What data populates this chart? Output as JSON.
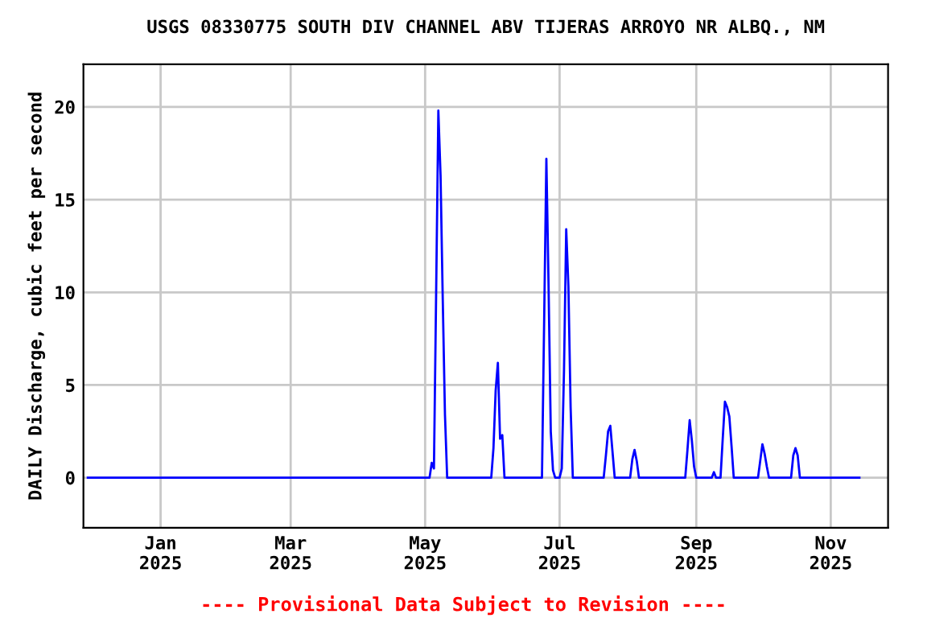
{
  "chart_data": {
    "type": "line",
    "title": "USGS 08330775 SOUTH DIV CHANNEL ABV TIJERAS ARROYO NR ALBQ., NM",
    "ylabel": "DAILY Discharge, cubic feet per second",
    "annotations": [
      "---- Provisional Data Subject to Revision ----"
    ],
    "series": [
      {
        "color": "#0000ff",
        "x": [
          "2024-11-29",
          "2025-05-03",
          "2025-05-04",
          "2025-05-05",
          "2025-05-06",
          "2025-05-07",
          "2025-05-08",
          "2025-05-09",
          "2025-05-10",
          "2025-05-11",
          "2025-05-31",
          "2025-06-01",
          "2025-06-02",
          "2025-06-03",
          "2025-06-04",
          "2025-06-05",
          "2025-06-06",
          "2025-06-23",
          "2025-06-24",
          "2025-06-25",
          "2025-06-26",
          "2025-06-27",
          "2025-06-28",
          "2025-06-29",
          "2025-07-01",
          "2025-07-02",
          "2025-07-03",
          "2025-07-04",
          "2025-07-05",
          "2025-07-06",
          "2025-07-07",
          "2025-07-21",
          "2025-07-22",
          "2025-07-23",
          "2025-07-24",
          "2025-07-25",
          "2025-07-26",
          "2025-08-02",
          "2025-08-03",
          "2025-08-04",
          "2025-08-05",
          "2025-08-06",
          "2025-08-27",
          "2025-08-28",
          "2025-08-29",
          "2025-08-30",
          "2025-08-31",
          "2025-09-01",
          "2025-09-08",
          "2025-09-09",
          "2025-09-10",
          "2025-09-12",
          "2025-09-13",
          "2025-09-14",
          "2025-09-15",
          "2025-09-16",
          "2025-09-17",
          "2025-09-18",
          "2025-09-29",
          "2025-09-30",
          "2025-10-01",
          "2025-10-02",
          "2025-10-03",
          "2025-10-04",
          "2025-10-14",
          "2025-10-15",
          "2025-10-16",
          "2025-10-17",
          "2025-10-18",
          "2025-11-14"
        ],
        "values": [
          0,
          0,
          0.8,
          0.5,
          10,
          19.8,
          16.3,
          9.6,
          3.4,
          0,
          0,
          1.6,
          4.7,
          6.2,
          2.1,
          2.3,
          0,
          0,
          8.5,
          17.2,
          10.3,
          2.5,
          0.4,
          0,
          0,
          0.5,
          5.8,
          13.4,
          10.3,
          3.8,
          0,
          0,
          1.2,
          2.5,
          2.8,
          1.4,
          0,
          0,
          1.0,
          1.5,
          0.9,
          0,
          0,
          1.5,
          3.1,
          2.0,
          0.6,
          0,
          0,
          0.3,
          0,
          0,
          2.1,
          4.1,
          3.8,
          3.3,
          1.7,
          0,
          0,
          0.9,
          1.8,
          1.3,
          0.6,
          0,
          0,
          1.2,
          1.6,
          1.2,
          0,
          0
        ]
      }
    ],
    "xlim": [
      "2024-11-27",
      "2025-11-27"
    ],
    "xticks": [
      {
        "value": "2025-01-01",
        "label": "Jan\n2025"
      },
      {
        "value": "2025-03-01",
        "label": "Mar\n2025"
      },
      {
        "value": "2025-05-01",
        "label": "May\n2025"
      },
      {
        "value": "2025-07-01",
        "label": "Jul\n2025"
      },
      {
        "value": "2025-09-01",
        "label": "Sep\n2025"
      },
      {
        "value": "2025-11-01",
        "label": "Nov\n2025"
      }
    ],
    "ylim": [
      -2.7,
      22.3
    ],
    "yticks": [
      0,
      5,
      10,
      15,
      20
    ],
    "grid": true
  }
}
